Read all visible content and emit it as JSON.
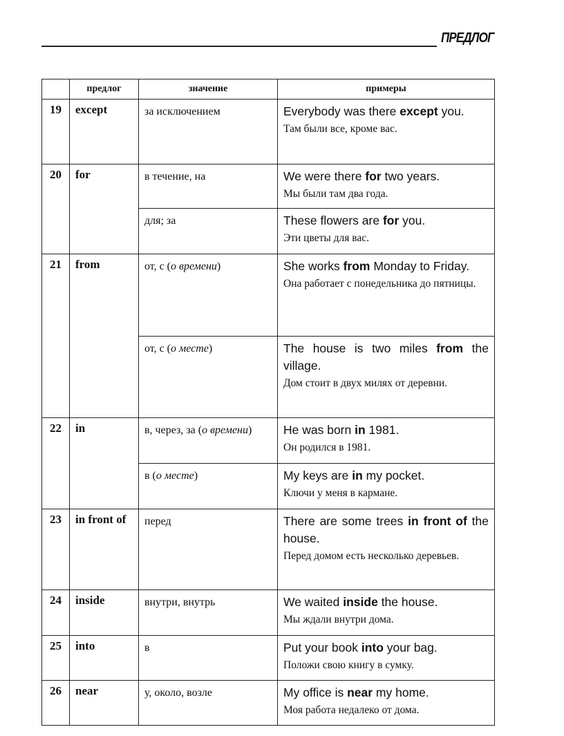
{
  "header": {
    "section_title": "ПРЕДЛОГ"
  },
  "table": {
    "columns": [
      "",
      "предлог",
      "значение",
      "примеры"
    ],
    "rows": [
      {
        "num": "19",
        "preposition": "except",
        "senses": [
          {
            "meaning": [
              {
                "t": "за исключением"
              }
            ],
            "example_en": [
              {
                "t": "Everybody was there "
              },
              {
                "t": "except",
                "b": true
              },
              {
                "t": " you."
              }
            ],
            "example_ru": "Там были все, кроме вас."
          }
        ]
      },
      {
        "num": "20",
        "preposition": "for",
        "senses": [
          {
            "meaning": [
              {
                "t": "в течение, на"
              }
            ],
            "example_en": [
              {
                "t": "We were there "
              },
              {
                "t": "for",
                "b": true
              },
              {
                "t": " two years."
              }
            ],
            "example_ru": "Мы были там два года."
          },
          {
            "meaning": [
              {
                "t": "для; за"
              }
            ],
            "example_en": [
              {
                "t": "These flowers are "
              },
              {
                "t": "for",
                "b": true
              },
              {
                "t": " you."
              }
            ],
            "example_ru": "Эти цветы для вас."
          }
        ]
      },
      {
        "num": "21",
        "preposition": "from",
        "senses": [
          {
            "meaning": [
              {
                "t": "от, с ("
              },
              {
                "t": "о времени",
                "i": true
              },
              {
                "t": ")"
              }
            ],
            "example_en": [
              {
                "t": "She works "
              },
              {
                "t": "from",
                "b": true
              },
              {
                "t": " Monday to Friday."
              }
            ],
            "example_ru": "Она работает с понедельника до пятницы."
          },
          {
            "meaning": [
              {
                "t": "от, с ("
              },
              {
                "t": "о месте",
                "i": true
              },
              {
                "t": ")"
              }
            ],
            "example_en": [
              {
                "t": "The house is two miles "
              },
              {
                "t": "from",
                "b": true
              },
              {
                "t": " the village."
              }
            ],
            "example_ru": "Дом стоит в двух милях от деревни."
          }
        ]
      },
      {
        "num": "22",
        "preposition": "in",
        "senses": [
          {
            "meaning": [
              {
                "t": "в, через, за ("
              },
              {
                "t": "о времени",
                "i": true
              },
              {
                "t": ")"
              }
            ],
            "example_en": [
              {
                "t": "He was born "
              },
              {
                "t": "in",
                "b": true
              },
              {
                "t": " 1981."
              }
            ],
            "example_ru": "Он родился в 1981."
          },
          {
            "meaning": [
              {
                "t": "в ("
              },
              {
                "t": "о месте",
                "i": true
              },
              {
                "t": ")"
              }
            ],
            "example_en": [
              {
                "t": "My keys are "
              },
              {
                "t": "in",
                "b": true
              },
              {
                "t": " my pocket."
              }
            ],
            "example_ru": "Ключи у меня в кармане."
          }
        ]
      },
      {
        "num": "23",
        "preposition": "in front of",
        "senses": [
          {
            "meaning": [
              {
                "t": "перед"
              }
            ],
            "example_en": [
              {
                "t": "There are some trees "
              },
              {
                "t": "in front of",
                "b": true
              },
              {
                "t": " the house."
              }
            ],
            "example_ru": "Перед домом есть несколько деревьев."
          }
        ]
      },
      {
        "num": "24",
        "preposition": "inside",
        "senses": [
          {
            "meaning": [
              {
                "t": "внутри, внутрь"
              }
            ],
            "example_en": [
              {
                "t": "We waited "
              },
              {
                "t": "inside",
                "b": true
              },
              {
                "t": " the house."
              }
            ],
            "example_ru": "Мы ждали внутри дома."
          }
        ]
      },
      {
        "num": "25",
        "preposition": "into",
        "senses": [
          {
            "meaning": [
              {
                "t": "в"
              }
            ],
            "example_en": [
              {
                "t": "Put your book "
              },
              {
                "t": "into",
                "b": true
              },
              {
                "t": " your bag."
              }
            ],
            "example_ru": "Положи свою книгу в сумку."
          }
        ]
      },
      {
        "num": "26",
        "preposition": "near",
        "senses": [
          {
            "meaning": [
              {
                "t": "у, около, возле"
              }
            ],
            "example_en": [
              {
                "t": "My office is "
              },
              {
                "t": "near",
                "b": true
              },
              {
                "t": " my home."
              }
            ],
            "example_ru": "Моя работа недалеко от дома."
          }
        ]
      }
    ]
  }
}
